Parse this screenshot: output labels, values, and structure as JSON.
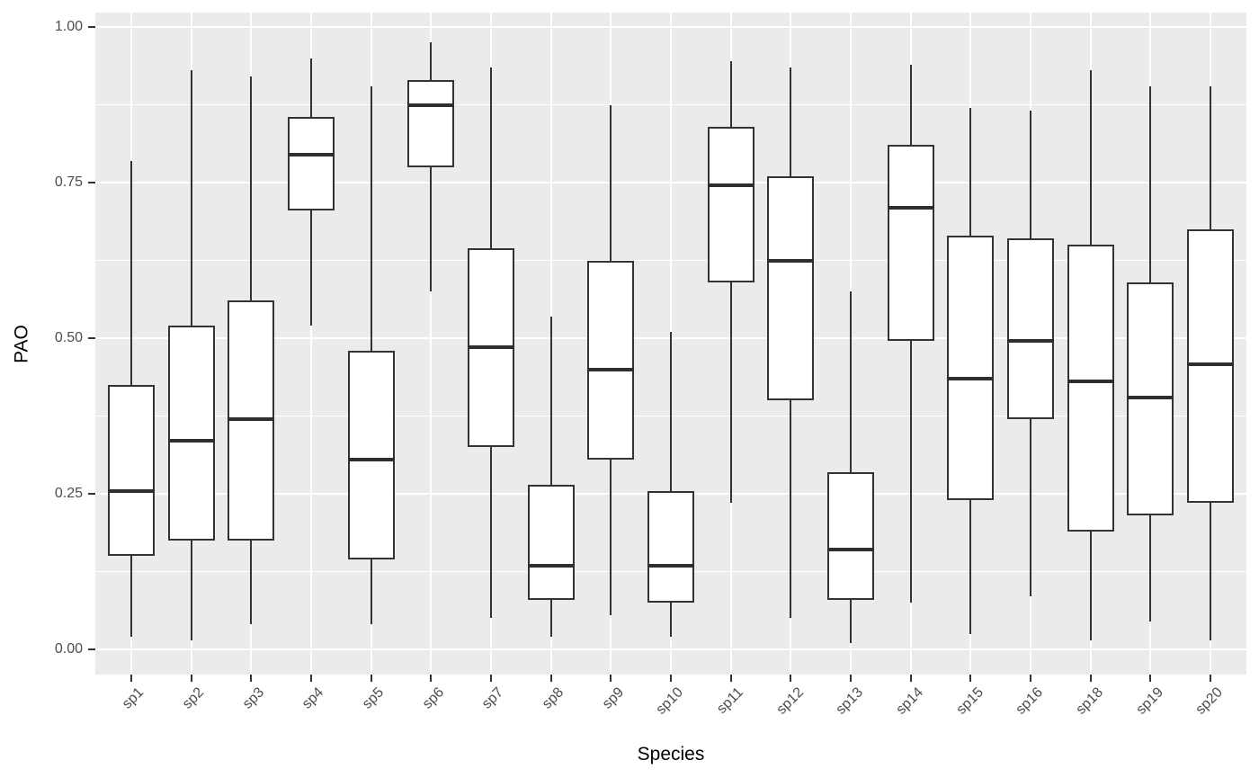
{
  "chart_data": {
    "type": "boxplot",
    "title": "",
    "xlabel": "Species",
    "ylabel": "PAO",
    "categories": [
      "sp1",
      "sp2",
      "sp3",
      "sp4",
      "sp5",
      "sp6",
      "sp7",
      "sp8",
      "sp9",
      "sp10",
      "sp11",
      "sp12",
      "sp13",
      "sp14",
      "sp15",
      "sp16",
      "sp18",
      "sp19",
      "sp20"
    ],
    "y_tick_labels": [
      "0.00",
      "0.25",
      "0.50",
      "0.75",
      "1.00"
    ],
    "y_tick_values": [
      0,
      0.25,
      0.5,
      0.75,
      1.0
    ],
    "y_minor_gridlines": [
      0.125,
      0.375,
      0.625,
      0.875
    ],
    "ylim": [
      -0.04,
      1.02
    ],
    "grid": "on",
    "legend": "none",
    "boxes": [
      {
        "label": "sp1",
        "whisker_low": 0.02,
        "q1": 0.15,
        "median": 0.255,
        "q3": 0.425,
        "whisker_high": 0.785
      },
      {
        "label": "sp2",
        "whisker_low": 0.015,
        "q1": 0.175,
        "median": 0.335,
        "q3": 0.52,
        "whisker_high": 0.93
      },
      {
        "label": "sp3",
        "whisker_low": 0.04,
        "q1": 0.175,
        "median": 0.37,
        "q3": 0.56,
        "whisker_high": 0.92
      },
      {
        "label": "sp4",
        "whisker_low": 0.52,
        "q1": 0.705,
        "median": 0.795,
        "q3": 0.855,
        "whisker_high": 0.95
      },
      {
        "label": "sp5",
        "whisker_low": 0.04,
        "q1": 0.145,
        "median": 0.305,
        "q3": 0.48,
        "whisker_high": 0.905
      },
      {
        "label": "sp6",
        "whisker_low": 0.575,
        "q1": 0.775,
        "median": 0.875,
        "q3": 0.915,
        "whisker_high": 0.975
      },
      {
        "label": "sp7",
        "whisker_low": 0.05,
        "q1": 0.325,
        "median": 0.485,
        "q3": 0.645,
        "whisker_high": 0.935
      },
      {
        "label": "sp8",
        "whisker_low": 0.02,
        "q1": 0.08,
        "median": 0.135,
        "q3": 0.265,
        "whisker_high": 0.535
      },
      {
        "label": "sp9",
        "whisker_low": 0.055,
        "q1": 0.305,
        "median": 0.45,
        "q3": 0.625,
        "whisker_high": 0.875
      },
      {
        "label": "sp10",
        "whisker_low": 0.02,
        "q1": 0.075,
        "median": 0.135,
        "q3": 0.255,
        "whisker_high": 0.51
      },
      {
        "label": "sp11",
        "whisker_low": 0.235,
        "q1": 0.59,
        "median": 0.745,
        "q3": 0.84,
        "whisker_high": 0.945
      },
      {
        "label": "sp12",
        "whisker_low": 0.05,
        "q1": 0.4,
        "median": 0.625,
        "q3": 0.76,
        "whisker_high": 0.935
      },
      {
        "label": "sp13",
        "whisker_low": 0.01,
        "q1": 0.08,
        "median": 0.16,
        "q3": 0.285,
        "whisker_high": 0.575
      },
      {
        "label": "sp14",
        "whisker_low": 0.075,
        "q1": 0.495,
        "median": 0.71,
        "q3": 0.81,
        "whisker_high": 0.94
      },
      {
        "label": "sp15",
        "whisker_low": 0.025,
        "q1": 0.24,
        "median": 0.435,
        "q3": 0.665,
        "whisker_high": 0.87
      },
      {
        "label": "sp16",
        "whisker_low": 0.085,
        "q1": 0.37,
        "median": 0.495,
        "q3": 0.66,
        "whisker_high": 0.865
      },
      {
        "label": "sp18",
        "whisker_low": 0.015,
        "q1": 0.19,
        "median": 0.43,
        "q3": 0.65,
        "whisker_high": 0.93
      },
      {
        "label": "sp19",
        "whisker_low": 0.045,
        "q1": 0.215,
        "median": 0.405,
        "q3": 0.59,
        "whisker_high": 0.905
      },
      {
        "label": "sp20",
        "whisker_low": 0.015,
        "q1": 0.235,
        "median": 0.458,
        "q3": 0.675,
        "whisker_high": 0.905
      }
    ]
  },
  "style": {
    "panel_bg": "#EBEBEB",
    "gridline": "#FFFFFF",
    "box_border": "#333333",
    "box_fill": "#FFFFFF",
    "median_color": "#2E2E2E",
    "tick_mark_color": "#333333",
    "tick_label_color": "#4D4D4D",
    "axis_title_color": "#000000"
  }
}
